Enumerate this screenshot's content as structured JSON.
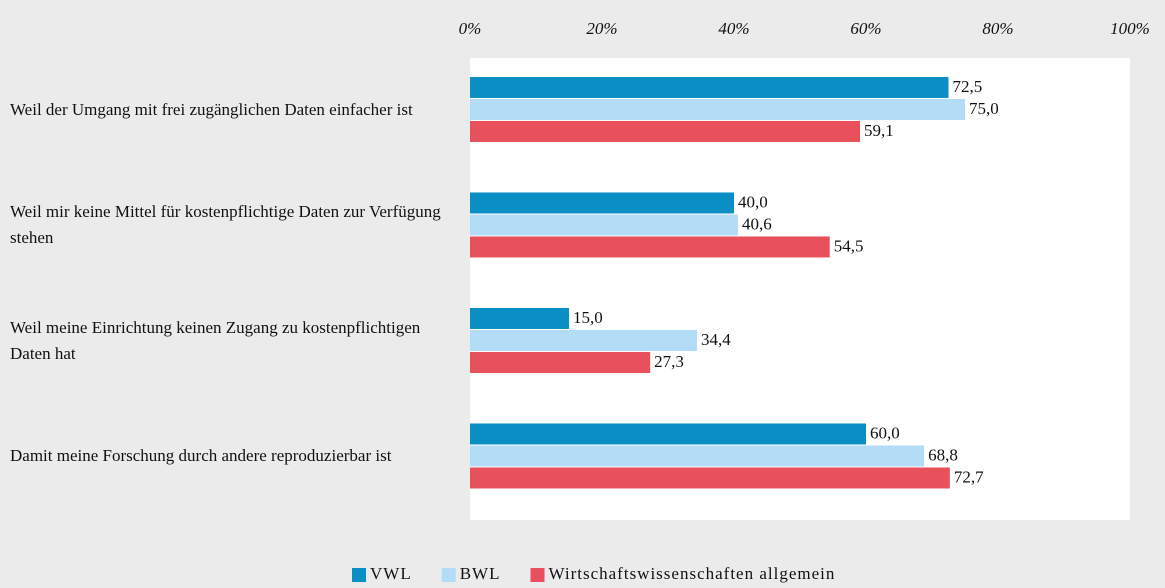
{
  "chart_data": {
    "type": "barh",
    "categories": [
      "Weil der Umgang mit frei zugänglichen Daten einfacher ist",
      "Weil mir keine Mittel für kostenpflichtige Daten zur Verfügung stehen",
      "Weil meine Einrichtung keinen Zugang zu kostenpflichtigen Daten hat",
      "Damit meine Forschung durch andere reproduzierbar ist"
    ],
    "series": [
      {
        "name": "VWL",
        "color": "#0a8fc4",
        "values": [
          72.5,
          40.0,
          15.0,
          60.0
        ],
        "value_labels": [
          "72,5",
          "40,0",
          "15,0",
          "60,0"
        ]
      },
      {
        "name": "BWL",
        "color": "#b3ddf7",
        "values": [
          75.0,
          40.6,
          34.4,
          68.8
        ],
        "value_labels": [
          "75,0",
          "40,6",
          "34,4",
          "68,8"
        ]
      },
      {
        "name": "Wirtschaftswissenschaften allgemein",
        "color": "#e8505b",
        "values": [
          59.1,
          54.5,
          27.3,
          72.7
        ],
        "value_labels": [
          "59,1",
          "54,5",
          "27,3",
          "72,7"
        ]
      }
    ],
    "xlim": [
      0,
      100
    ],
    "xticks": [
      {
        "value": 0,
        "label": "0%"
      },
      {
        "value": 20,
        "label": "20%"
      },
      {
        "value": 40,
        "label": "40%"
      },
      {
        "value": 60,
        "label": "60%"
      },
      {
        "value": 80,
        "label": "80%"
      },
      {
        "value": 100,
        "label": "100%"
      }
    ],
    "grid": false
  }
}
